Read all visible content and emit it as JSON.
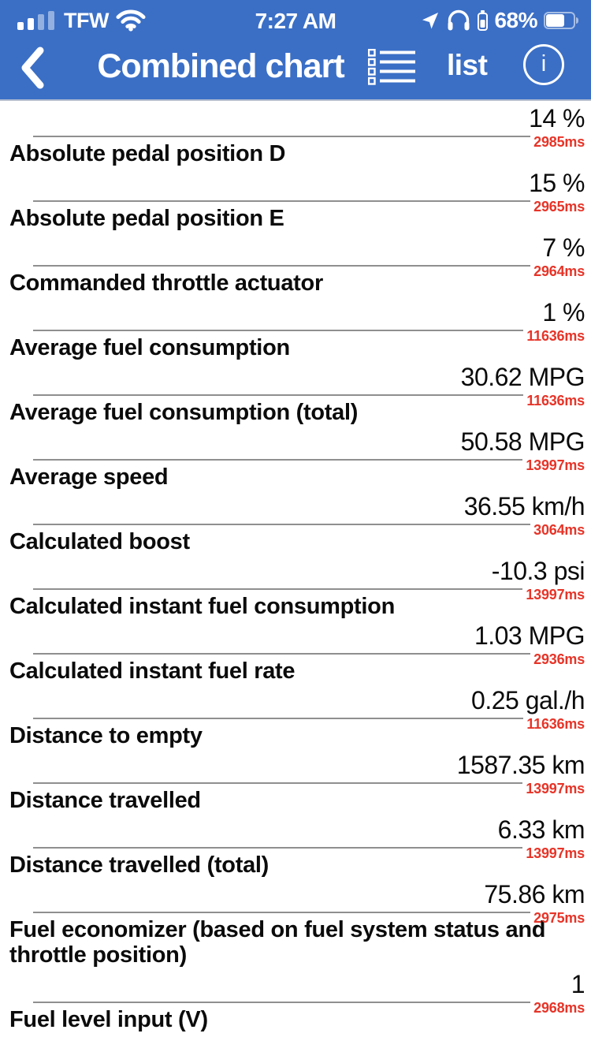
{
  "colors": {
    "header_blue": "#3b6fc6",
    "timestamp_red": "#e73428",
    "rule_gray": "#8f8f8f",
    "text_black": "#0b0b0b"
  },
  "status_bar": {
    "carrier": "TFW",
    "time": "7:27 AM",
    "battery_text": "68%",
    "battery_fill_percent": 68
  },
  "nav": {
    "title": "Combined chart",
    "list_button_label": "list",
    "info_glyph": "i"
  },
  "items": [
    {
      "value": "14 %",
      "time": "2985ms",
      "label": "Absolute pedal position D"
    },
    {
      "value": "15 %",
      "time": "2965ms",
      "label": "Absolute pedal position E"
    },
    {
      "value": "7 %",
      "time": "2964ms",
      "label": "Commanded throttle actuator"
    },
    {
      "value": "1 %",
      "time": "11636ms",
      "label": "Average fuel consumption"
    },
    {
      "value": "30.62 MPG",
      "time": "11636ms",
      "label": "Average fuel consumption (total)"
    },
    {
      "value": "50.58 MPG",
      "time": "13997ms",
      "label": "Average speed"
    },
    {
      "value": "36.55 km/h",
      "time": "3064ms",
      "label": "Calculated boost"
    },
    {
      "value": "-10.3 psi",
      "time": "13997ms",
      "label": "Calculated instant fuel consumption"
    },
    {
      "value": "1.03 MPG",
      "time": "2936ms",
      "label": "Calculated instant fuel rate"
    },
    {
      "value": "0.25 gal./h",
      "time": "11636ms",
      "label": "Distance to empty"
    },
    {
      "value": "1587.35 km",
      "time": "13997ms",
      "label": "Distance travelled"
    },
    {
      "value": "6.33 km",
      "time": "13997ms",
      "label": "Distance travelled (total)"
    },
    {
      "value": "75.86 km",
      "time": "2975ms",
      "label": "Fuel economizer (based on fuel system status and throttle position)"
    },
    {
      "value": "1",
      "time": "2968ms",
      "label": "Fuel level input (V)"
    }
  ]
}
